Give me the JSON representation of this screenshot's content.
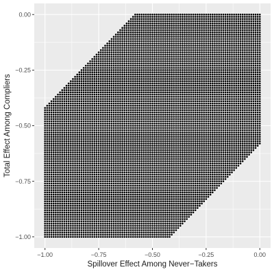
{
  "chart_data": {
    "type": "scatter",
    "title": "",
    "xlabel": "Spillover Effect Among Never−Takers",
    "ylabel": "Total Effect Among Compliers",
    "xlim": [
      -1.05,
      0.05
    ],
    "ylim": [
      -1.05,
      0.05
    ],
    "x_ticks": [
      -1.0,
      -0.75,
      -0.5,
      -0.25,
      0.0
    ],
    "x_tick_labels": [
      "−1.00",
      "−0.75",
      "−0.50",
      "−0.25",
      "0.00"
    ],
    "y_ticks": [
      0.0,
      -0.25,
      -0.5,
      -0.75,
      -1.0
    ],
    "y_tick_labels": [
      "0.00",
      "−0.25",
      "−0.50",
      "−0.75",
      "−1.00"
    ],
    "grid": true,
    "background": "#ebebeb",
    "grid_color": "#ffffff",
    "point_color": "#000000",
    "point_grid": {
      "x_min": -1.0,
      "x_max": 0.0,
      "y_min": -1.0,
      "y_max": 0.0,
      "step": 0.01,
      "region": "y >= x - 0.58 and y <= x + 0.58 (clipped to the square [-1, 0] x [-1, 0])",
      "lower_offset": -0.58,
      "upper_offset": 0.58
    }
  }
}
